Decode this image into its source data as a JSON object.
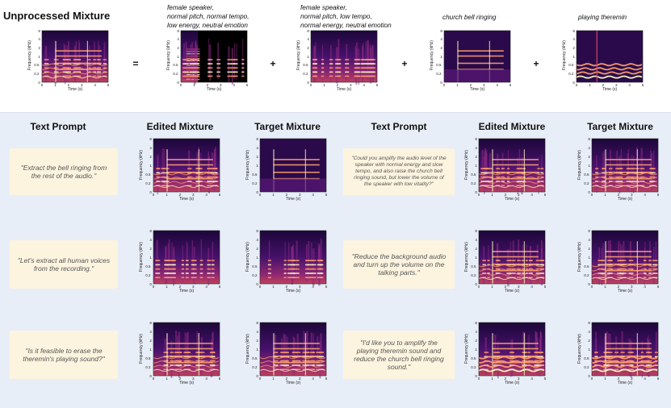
{
  "title": "Unprocessed Mixture",
  "operators": [
    "=",
    "+",
    "+",
    "+"
  ],
  "components": [
    {
      "caption": "female speaker,\nnormal pitch, normal tempo,\nlow energy, neutral emotion"
    },
    {
      "caption": "female speaker,\nnormal pitch, low tempo,\nnormal energy, neutral emotion"
    },
    {
      "caption": "church bell ringing"
    },
    {
      "caption": "playing theremin"
    }
  ],
  "column_headers": [
    "Text Prompt",
    "Edited Mixture",
    "Target Mixture",
    "Text Prompt",
    "Edited Mixture",
    "Target Mixture"
  ],
  "prompts": [
    "\"Extract the bell ringing from the rest of the audio.\"",
    "\"Could you amplify the audio level of the speaker with normal energy and slow tempo, and also raise the church bell ringing sound, but lower the volume of the speaker with low vitality?\"",
    "\"Let's extract all human voices from the recording.\"",
    "\"Reduce the background audio and turn up the volume on the talking parts.\"",
    "\"Is it feasible to erase the theremin's playing sound?\"",
    "\"I'd like you to amplify the playing theremin sound and reduce the church bell ringing sound.\""
  ],
  "axes": {
    "xlabel": "Time (s)",
    "ylabel": "Frequency (kHz)",
    "xticks": [
      "0",
      "1",
      "2",
      "3",
      "4",
      "5"
    ],
    "yticks": [
      "8",
      "4",
      "2",
      "1",
      "0.5",
      "0.2",
      "0"
    ]
  },
  "colors": {
    "bg_panel": "#e8eef8",
    "prompt_bg": "#fdf4df",
    "spec_dark": "#0d0422",
    "spec_hot": "#f9e07a"
  }
}
